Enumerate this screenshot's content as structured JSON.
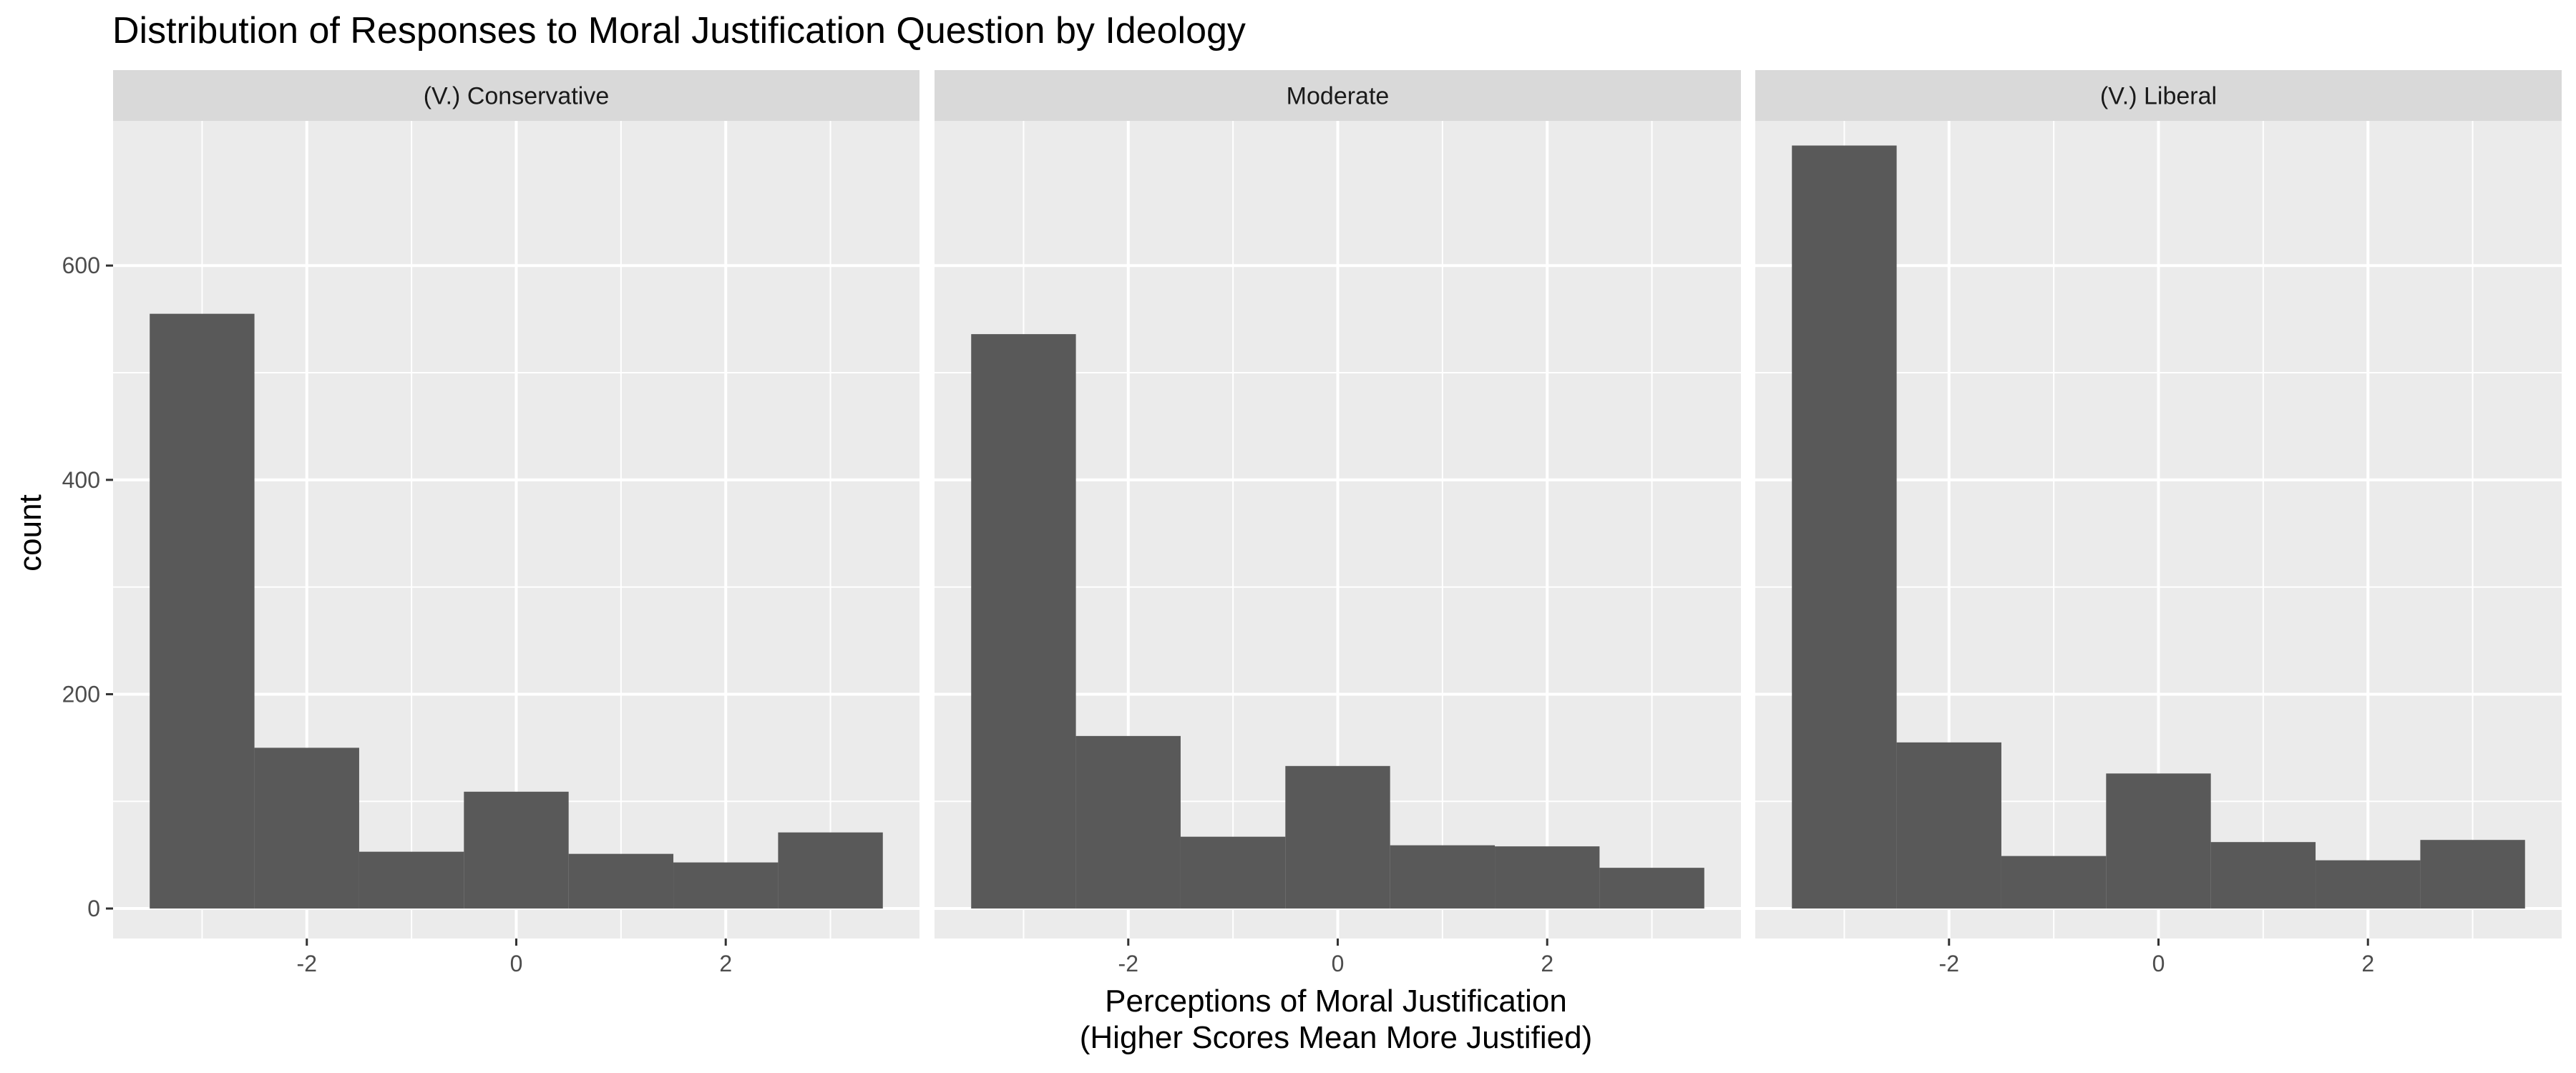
{
  "chart_data": {
    "type": "bar",
    "title": "Distribution of Responses to Moral Justification Question by Ideology",
    "xlabel_line1": "Perceptions of Moral Justification",
    "xlabel_line2": "(Higher Scores Mean More Justified)",
    "ylabel": "count",
    "xlim": [
      -3.85,
      3.85
    ],
    "ylim": [
      -28,
      735
    ],
    "x_breaks": [
      -2,
      0,
      2
    ],
    "x_tick_labels": [
      "-2",
      "0",
      "2"
    ],
    "y_breaks": [
      0,
      200,
      400,
      600
    ],
    "y_tick_labels": [
      "0",
      "200",
      "400",
      "600"
    ],
    "bins": [
      -3,
      -2,
      -1,
      0,
      1,
      2,
      3
    ],
    "bin_width": 1,
    "grid": true,
    "colors": {
      "bar": "#595959",
      "panel_bg": "#ebebeb",
      "strip_bg": "#d9d9d9",
      "grid": "#ffffff"
    },
    "panels": [
      {
        "label": "(V.) Conservative",
        "values": [
          555,
          150,
          53,
          109,
          51,
          43,
          71
        ]
      },
      {
        "label": "Moderate",
        "values": [
          536,
          161,
          67,
          133,
          59,
          58,
          38
        ]
      },
      {
        "label": "(V.) Liberal",
        "values": [
          712,
          155,
          49,
          126,
          62,
          45,
          64
        ]
      }
    ]
  }
}
